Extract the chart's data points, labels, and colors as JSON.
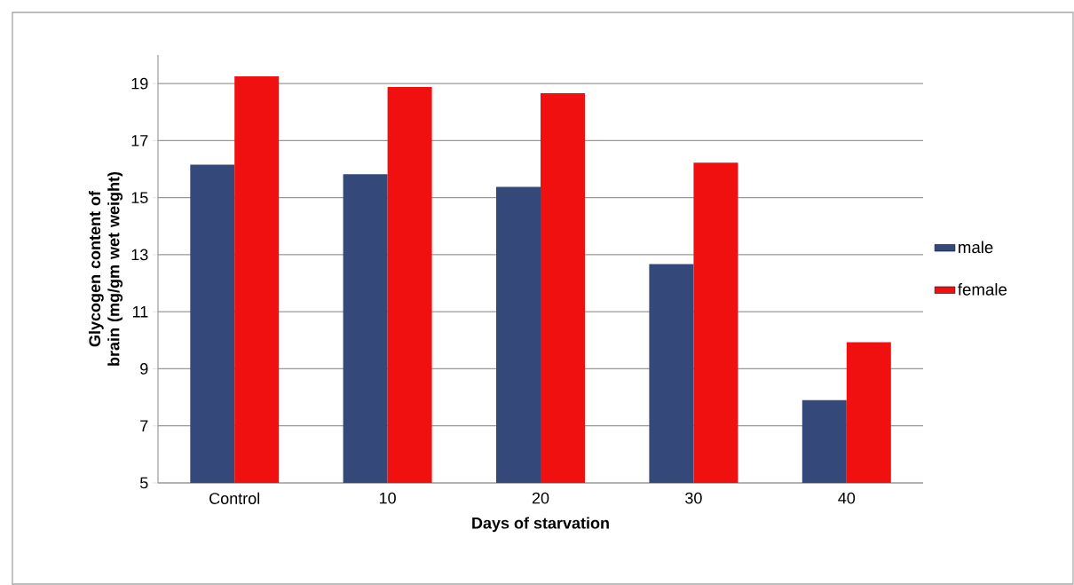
{
  "chart_data": {
    "type": "bar",
    "xlabel": "Days of starvation",
    "ylabel": "Glycogen content of brain (mg/gm wet weight)",
    "categories": [
      "Control",
      "10",
      "20",
      "30",
      "40"
    ],
    "series": [
      {
        "name": "male",
        "color": "#34497a",
        "values": [
          16.16,
          15.82,
          15.38,
          12.67,
          7.9
        ]
      },
      {
        "name": "female",
        "color": "#f01010",
        "values": [
          19.25,
          18.88,
          18.66,
          16.23,
          9.93
        ]
      }
    ],
    "ylim": [
      5,
      20
    ],
    "yticks": [
      5,
      7,
      9,
      11,
      13,
      15,
      17,
      19
    ],
    "grid": "y",
    "legend": "right"
  }
}
